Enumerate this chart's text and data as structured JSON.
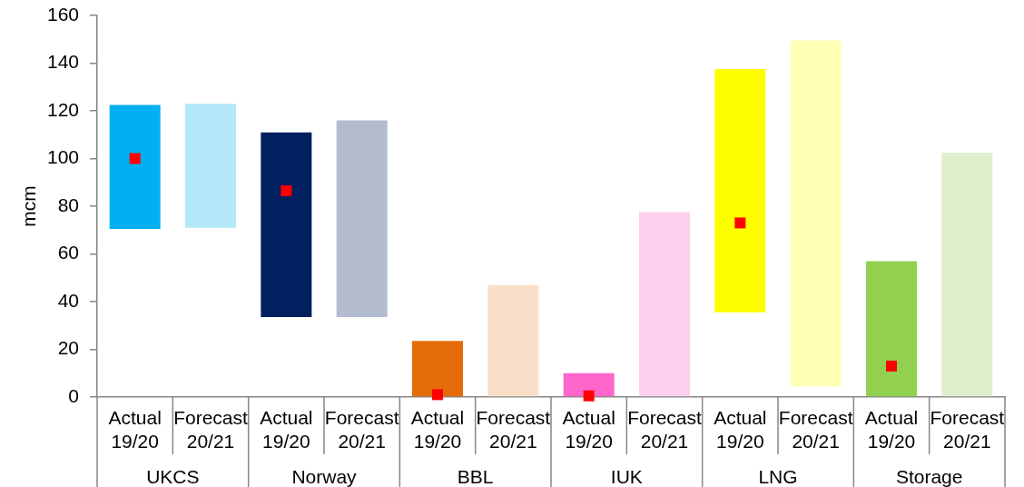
{
  "chart_data": {
    "type": "bar",
    "ylabel": "mcm",
    "categories": [
      "Actual 19/20",
      "Forecast 20/21",
      "Actual 19/20",
      "Forecast 20/21",
      "Actual 19/20",
      "Forecast 20/21",
      "Actual 19/20",
      "Forecast 20/21",
      "Actual 19/20",
      "Forecast 20/21",
      "Actual 19/20",
      "Forecast 20/21"
    ],
    "annotations": [
      "UKCS",
      "Norway",
      "BBL",
      "IUK",
      "LNG",
      "Storage"
    ],
    "series": [
      {
        "colors": [
          "#00b0f0",
          "#b3e8f8",
          "#002060",
          "#b3bccf",
          "#e46c0a",
          "#fadfc8",
          "#ff66cc",
          "#ffcfee",
          "#ffff00",
          "#ffffb5",
          "#92d050",
          "#dfeecd"
        ],
        "base": [
          70.5,
          71,
          33.5,
          33.5,
          0,
          0,
          0,
          0,
          35.5,
          4.5,
          0,
          0
        ],
        "values": [
          52,
          52,
          77.5,
          82.5,
          23.5,
          47,
          10,
          77.5,
          102,
          145,
          57,
          102.5
        ]
      },
      {
        "type": "scatter",
        "color": "#ff0000",
        "values": [
          100,
          null,
          86.5,
          null,
          1,
          null,
          0.5,
          null,
          73,
          null,
          13,
          null
        ]
      }
    ],
    "ylim": [
      0,
      160
    ],
    "yticks": [
      0,
      20,
      40,
      60,
      80,
      100,
      120,
      140,
      160
    ],
    "grid": false,
    "legend": false,
    "marker": "square"
  }
}
